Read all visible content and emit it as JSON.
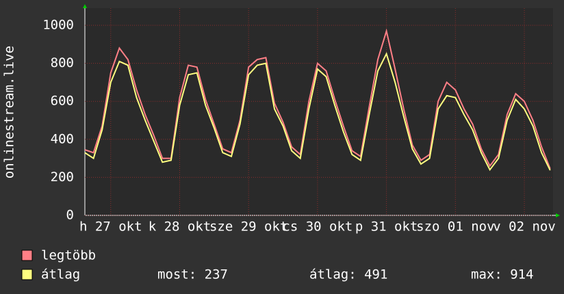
{
  "chart_data": {
    "type": "line",
    "y_label": "onlinestream.live",
    "x": [
      0,
      3,
      6,
      9,
      12,
      15,
      18,
      21,
      24,
      27,
      30,
      33,
      36,
      39,
      42,
      45,
      48,
      51,
      54,
      57,
      60,
      63,
      66,
      69,
      72,
      75,
      78,
      81,
      84,
      87,
      90,
      93,
      96,
      99,
      102,
      105,
      108,
      111,
      114,
      117,
      120,
      123,
      126,
      129,
      132,
      135,
      138,
      141,
      144,
      147,
      150,
      153,
      156,
      159,
      162
    ],
    "xlim": [
      0,
      163
    ],
    "xticks": [
      {
        "value": 9,
        "label": "h 27 okt"
      },
      {
        "value": 33,
        "label": "k 28 okt"
      },
      {
        "value": 57,
        "label": "sze 29 okt"
      },
      {
        "value": 81,
        "label": "cs 30 okt"
      },
      {
        "value": 105,
        "label": "p 31 okt"
      },
      {
        "value": 129,
        "label": "szo 01 nov"
      },
      {
        "value": 153,
        "label": "v 02 nov"
      }
    ],
    "ylim": [
      0,
      1090
    ],
    "yticks": [
      0,
      200,
      400,
      600,
      800,
      1000
    ],
    "grid": true,
    "series": [
      {
        "name": "legtöbb",
        "color": "#ff7f86",
        "values": [
          345,
          330,
          470,
          750,
          880,
          820,
          660,
          530,
          420,
          300,
          300,
          620,
          790,
          780,
          610,
          480,
          350,
          330,
          500,
          780,
          820,
          830,
          590,
          490,
          360,
          320,
          600,
          800,
          760,
          610,
          470,
          340,
          310,
          570,
          820,
          970,
          770,
          560,
          370,
          290,
          320,
          600,
          700,
          660,
          560,
          480,
          350,
          260,
          320,
          530,
          640,
          600,
          500,
          360,
          245
        ]
      },
      {
        "name": "átlag",
        "color": "#ffff80",
        "values": [
          330,
          300,
          450,
          700,
          810,
          790,
          620,
          500,
          390,
          280,
          290,
          580,
          740,
          750,
          580,
          460,
          330,
          310,
          480,
          740,
          790,
          800,
          560,
          470,
          340,
          300,
          560,
          770,
          730,
          580,
          440,
          320,
          290,
          530,
          760,
          850,
          700,
          520,
          350,
          270,
          300,
          560,
          630,
          620,
          530,
          450,
          330,
          240,
          300,
          500,
          610,
          560,
          470,
          330,
          237
        ]
      }
    ],
    "stats": [
      "most: 237",
      "átlag: 491",
      "max: 914"
    ]
  }
}
